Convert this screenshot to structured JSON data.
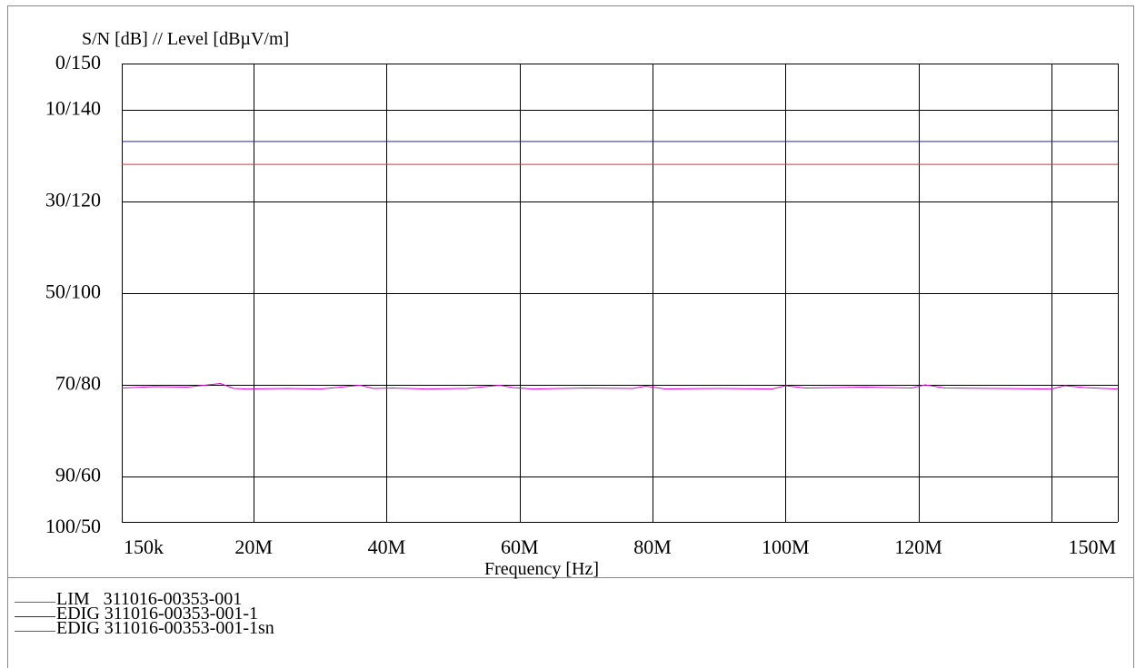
{
  "chart_data": {
    "type": "line",
    "ylabel": "S/N [dB] // Level [dBµV/m]",
    "xlabel": "Frequency [Hz]",
    "xlim": [
      150000,
      150000000
    ],
    "ylim": [
      50,
      150
    ],
    "x_ticks": [
      {
        "value": 150000,
        "label": "150k"
      },
      {
        "value": 20000000,
        "label": "20M"
      },
      {
        "value": 40000000,
        "label": "40M"
      },
      {
        "value": 60000000,
        "label": "60M"
      },
      {
        "value": 80000000,
        "label": "80M"
      },
      {
        "value": 100000000,
        "label": "100M"
      },
      {
        "value": 120000000,
        "label": "120M"
      },
      {
        "value": 150000000,
        "label": "150M"
      }
    ],
    "y_ticks": [
      {
        "value": 150,
        "label": "0/150"
      },
      {
        "value": 140,
        "label": "10/140"
      },
      {
        "value": 120,
        "label": "30/120"
      },
      {
        "value": 100,
        "label": "50/100"
      },
      {
        "value": 80,
        "label": "70/80"
      },
      {
        "value": 60,
        "label": "90/60"
      },
      {
        "value": 50,
        "label": "100/50"
      }
    ],
    "x_gridlines": [
      150000,
      20000000,
      40000000,
      60000000,
      80000000,
      100000000,
      120000000,
      140000000,
      150000000
    ],
    "y_gridlines": [
      150,
      140,
      120,
      100,
      80,
      60,
      50
    ],
    "grid": true,
    "legend_position": "bottom-left",
    "series": [
      {
        "name": "LIM   311016-00353-001",
        "color": "#e03030",
        "x": [
          150000,
          150000000
        ],
        "y": [
          128,
          128
        ]
      },
      {
        "name": "EDIG 311016-00353-001-1",
        "color": "#2020c0",
        "x": [
          150000,
          150000000
        ],
        "y": [
          133,
          133
        ]
      },
      {
        "name": "EDIG 311016-00353-001-1sn",
        "color": "#e000e0",
        "x": [
          150000,
          5000000,
          10000000,
          15000000,
          17000000,
          19000000,
          25000000,
          30000000,
          36000000,
          38000000,
          41000000,
          46000000,
          52000000,
          57000000,
          59000000,
          62000000,
          70000000,
          77000000,
          79000000,
          82000000,
          90000000,
          98000000,
          100000000,
          103000000,
          112000000,
          119000000,
          121000000,
          124000000,
          132000000,
          140000000,
          142000000,
          145000000,
          150000000
        ],
        "y": [
          79.2,
          79.5,
          79.4,
          80.2,
          79.1,
          79.0,
          79.1,
          79.0,
          79.8,
          79.1,
          79.2,
          79.0,
          79.1,
          79.8,
          79.3,
          79.0,
          79.2,
          79.1,
          79.6,
          79.0,
          79.1,
          79.0,
          79.7,
          79.2,
          79.4,
          79.2,
          79.9,
          79.2,
          79.1,
          79.0,
          79.7,
          79.3,
          79.0
        ]
      }
    ]
  }
}
